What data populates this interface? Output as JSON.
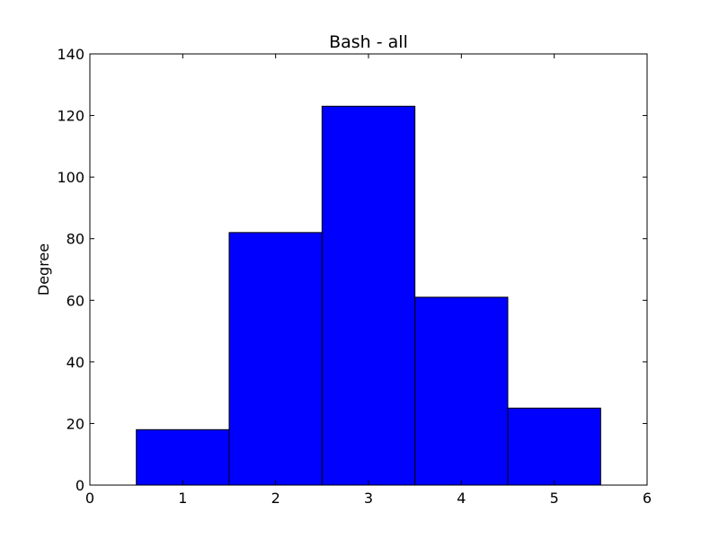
{
  "chart_data": {
    "type": "bar",
    "title": "Bash - all",
    "xlabel": "",
    "ylabel": "Degree",
    "x": [
      1,
      2,
      3,
      4,
      5
    ],
    "values": [
      18,
      82,
      123,
      61,
      25
    ],
    "bar_width": 1,
    "xlim": [
      0,
      6
    ],
    "ylim": [
      0,
      140
    ],
    "xticks": [
      "0",
      "1",
      "2",
      "3",
      "4",
      "5",
      "6"
    ],
    "yticks": [
      "0",
      "20",
      "40",
      "60",
      "80",
      "100",
      "120",
      "140"
    ],
    "bar_color": "#0000ff",
    "edge_color": "#000000",
    "grid": false
  }
}
